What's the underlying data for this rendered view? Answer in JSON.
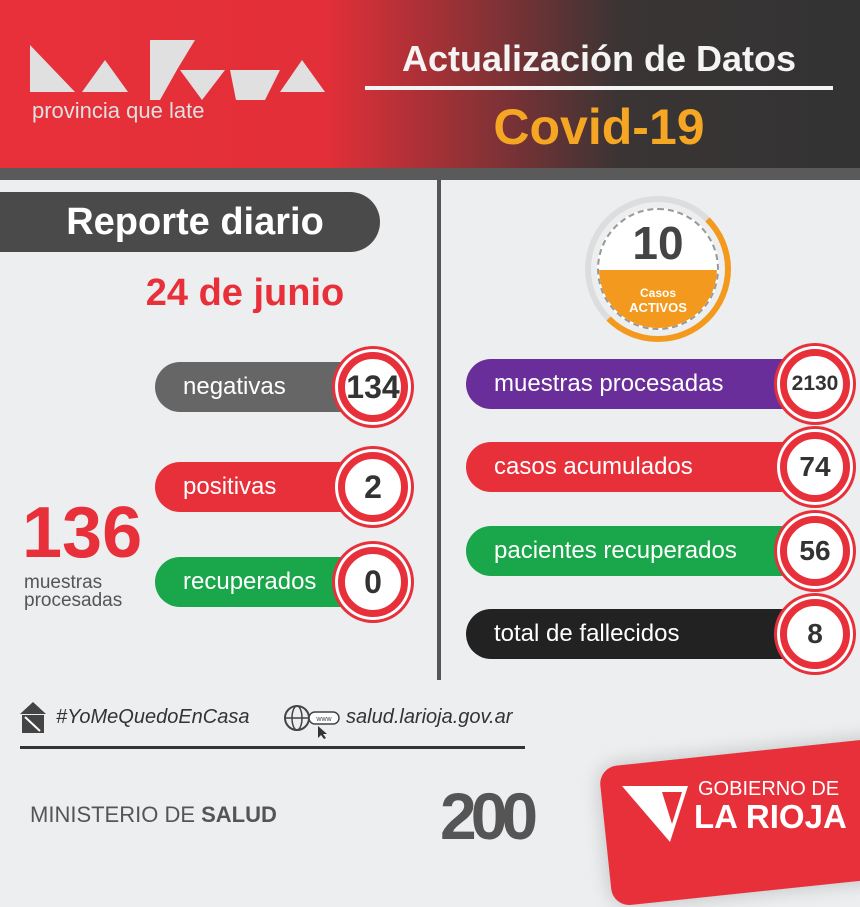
{
  "header": {
    "logo_tagline": "provincia que late",
    "logo_wordmark": "La Rioja",
    "title": "Actualización de Datos",
    "subtitle": "Covid-19"
  },
  "report": {
    "title": "Reporte diario",
    "date": "24 de junio",
    "total": "136",
    "total_label": "muestras procesadas",
    "rows": [
      {
        "label": "negativas",
        "value": "134",
        "color": "#666666"
      },
      {
        "label": "positivas",
        "value": "2",
        "color": "#e8303a"
      },
      {
        "label": "recuperados",
        "value": "0",
        "color": "#1aa64a"
      }
    ]
  },
  "active": {
    "value": "10",
    "label_line1": "Casos",
    "label_line2": "ACTIVOS",
    "color": "#f39a1e"
  },
  "totals": [
    {
      "label": "muestras procesadas",
      "value": "2130",
      "color": "#6a2e9a"
    },
    {
      "label": "casos acumulados",
      "value": "74",
      "color": "#e8303a"
    },
    {
      "label": "pacientes recuperados",
      "value": "56",
      "color": "#1aa64a"
    },
    {
      "label": "total de fallecidos",
      "value": "8",
      "color": "#222222"
    }
  ],
  "footer": {
    "hashtag": "#YoMeQuedoEnCasa",
    "website": "salud.larioja.gov.ar",
    "www": "www",
    "ministry_light": "MINISTERIO DE ",
    "ministry_bold": "SALUD",
    "anniversary": "200",
    "gov_line1": "GOBIERNO DE",
    "gov_line2": "LA RIOJA"
  }
}
